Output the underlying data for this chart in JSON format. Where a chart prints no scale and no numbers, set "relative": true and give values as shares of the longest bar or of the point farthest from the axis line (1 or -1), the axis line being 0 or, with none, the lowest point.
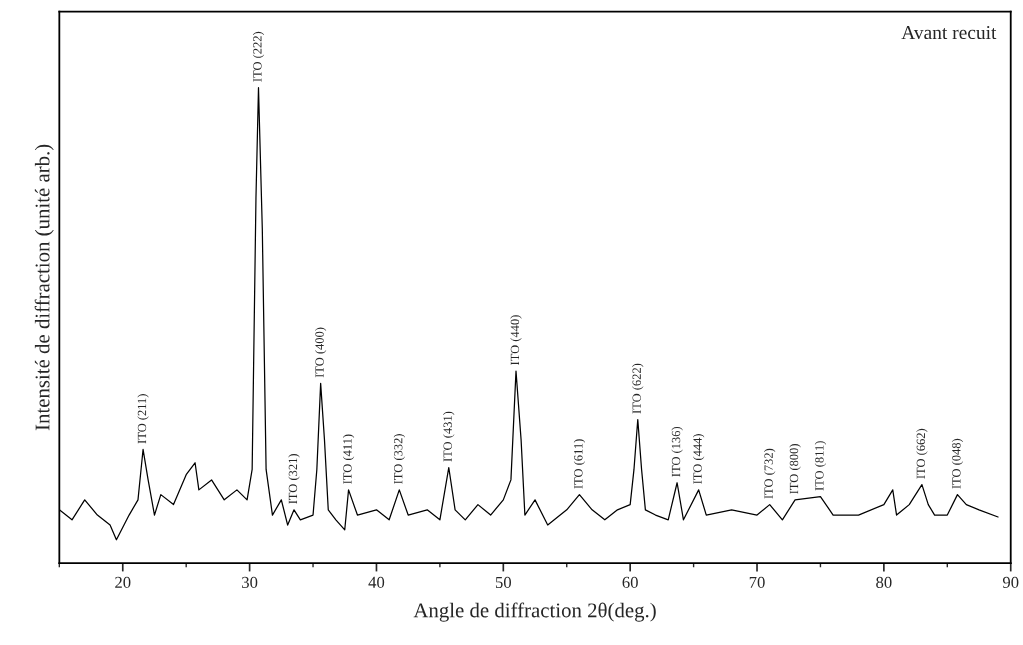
{
  "chart_data": {
    "type": "line",
    "relative": true,
    "xlabel": "Angle de diffraction 2θ(deg.)",
    "ylabel": "Intensité de diffraction (unité arb.)",
    "xlim": [
      15,
      90
    ],
    "xticks": [
      20,
      30,
      40,
      50,
      60,
      70,
      80,
      90
    ],
    "tick_labels": "x",
    "grid": false,
    "marker": "none",
    "line_style": "solid",
    "series": [
      {
        "color": "#000000",
        "x": [
          15,
          16,
          17,
          18,
          19,
          19.5,
          20.5,
          21.2,
          21.6,
          22,
          22.5,
          23,
          24,
          25,
          25.7,
          26,
          27,
          28,
          29,
          29.8,
          30.2,
          30.5,
          30.7,
          31,
          31.3,
          31.8,
          32.5,
          33,
          33.5,
          34,
          35,
          35.3,
          35.6,
          35.9,
          36.2,
          36.8,
          37.5,
          37.8,
          38.5,
          40,
          41,
          41.8,
          42.5,
          44,
          45,
          45.7,
          46.2,
          47,
          48,
          49,
          50,
          50.6,
          51,
          51.4,
          51.7,
          52.5,
          53.5,
          55,
          56,
          57,
          58,
          59,
          60,
          60.3,
          60.6,
          60.9,
          61.2,
          62,
          63,
          63.7,
          64.2,
          65.4,
          66,
          68,
          70,
          71,
          72,
          73,
          75,
          76,
          78,
          80,
          80.7,
          81,
          82,
          83,
          83.5,
          84,
          85,
          85.8,
          86.5,
          87.5,
          89
        ],
        "values": [
          0.112,
          0.091,
          0.133,
          0.101,
          0.08,
          0.049,
          0.101,
          0.133,
          0.239,
          0.175,
          0.101,
          0.144,
          0.123,
          0.186,
          0.211,
          0.154,
          0.175,
          0.133,
          0.154,
          0.133,
          0.197,
          0.767,
          1.0,
          0.704,
          0.197,
          0.101,
          0.133,
          0.08,
          0.112,
          0.091,
          0.101,
          0.197,
          0.378,
          0.26,
          0.112,
          0.091,
          0.07,
          0.154,
          0.101,
          0.112,
          0.091,
          0.154,
          0.101,
          0.112,
          0.091,
          0.201,
          0.112,
          0.091,
          0.123,
          0.101,
          0.133,
          0.175,
          0.404,
          0.26,
          0.101,
          0.133,
          0.08,
          0.112,
          0.144,
          0.112,
          0.091,
          0.112,
          0.123,
          0.197,
          0.302,
          0.197,
          0.112,
          0.101,
          0.091,
          0.169,
          0.091,
          0.154,
          0.101,
          0.112,
          0.101,
          0.123,
          0.091,
          0.133,
          0.14,
          0.101,
          0.101,
          0.123,
          0.154,
          0.101,
          0.123,
          0.165,
          0.123,
          0.101,
          0.101,
          0.144,
          0.123,
          0.112,
          0.097
        ]
      }
    ],
    "annotations": [
      {
        "text": "ITO (211)",
        "x": 21.6,
        "y": 0.239
      },
      {
        "text": "ITO (222)",
        "x": 30.7,
        "y": 1.0
      },
      {
        "text": "ITO (321)",
        "x": 33.5,
        "y": 0.112
      },
      {
        "text": "ITO (400)",
        "x": 35.6,
        "y": 0.378
      },
      {
        "text": "ITO (411)",
        "x": 37.8,
        "y": 0.154
      },
      {
        "text": "ITO (332)",
        "x": 41.8,
        "y": 0.154
      },
      {
        "text": "ITO (431)",
        "x": 45.7,
        "y": 0.201
      },
      {
        "text": "ITO (440)",
        "x": 51,
        "y": 0.404
      },
      {
        "text": "ITO (611)",
        "x": 56,
        "y": 0.144
      },
      {
        "text": "ITO (622)",
        "x": 60.6,
        "y": 0.302
      },
      {
        "text": "ITO (136)",
        "x": 63.7,
        "y": 0.169
      },
      {
        "text": "ITO (444)",
        "x": 65.4,
        "y": 0.154
      },
      {
        "text": "ITO (732)",
        "x": 71,
        "y": 0.123
      },
      {
        "text": "ITO (800)",
        "x": 73,
        "y": 0.133
      },
      {
        "text": "ITO (811)",
        "x": 75,
        "y": 0.14
      },
      {
        "text": "ITO (662)",
        "x": 83,
        "y": 0.165
      },
      {
        "text": "ITO (048)",
        "x": 85.8,
        "y": 0.144
      },
      "Avant recuit"
    ]
  }
}
